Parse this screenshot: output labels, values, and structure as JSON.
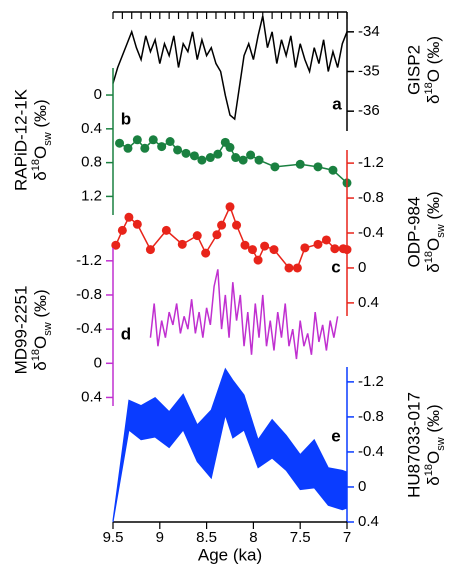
{
  "chart_data": [
    {
      "type": "line",
      "color": "#000000",
      "y_axis_side": "right",
      "x_axis_position": "top",
      "x_tick_labels": false,
      "y_label": "GISP2",
      "y_unit": [
        {
          "text": "δ"
        },
        {
          "text": "18",
          "style": "sup"
        },
        {
          "text": "O (‰)"
        }
      ],
      "panel_label": "a",
      "xlim": [
        9.5,
        7
      ],
      "xticks": [
        9.5,
        9.4,
        9.3,
        9.2,
        9.1,
        9,
        8.9,
        8.8,
        8.7,
        8.6,
        8.5,
        8.4,
        8.3,
        8.2,
        8.1,
        8,
        7.9,
        7.8,
        7.7,
        7.6,
        7.5,
        7.4,
        7.3,
        7.2,
        7.1,
        7
      ],
      "ylim": [
        -36.5,
        -33.5
      ],
      "yticks": [
        -34,
        -35,
        -36
      ],
      "x": [
        9.5,
        9.45,
        9.4,
        9.35,
        9.3,
        9.25,
        9.2,
        9.15,
        9.1,
        9.05,
        9.0,
        8.95,
        8.9,
        8.85,
        8.8,
        8.75,
        8.7,
        8.65,
        8.6,
        8.55,
        8.5,
        8.45,
        8.4,
        8.35,
        8.3,
        8.25,
        8.2,
        8.15,
        8.1,
        8.05,
        8.0,
        7.95,
        7.9,
        7.85,
        7.8,
        7.75,
        7.7,
        7.65,
        7.6,
        7.55,
        7.5,
        7.45,
        7.4,
        7.35,
        7.3,
        7.25,
        7.2,
        7.15,
        7.1,
        7.05,
        7.0
      ],
      "series": [
        {
          "values": [
            -35.3,
            -34.9,
            -34.6,
            -34.3,
            -34.0,
            -34.4,
            -34.7,
            -34.1,
            -34.5,
            -34.2,
            -34.8,
            -34.3,
            -34.6,
            -34.1,
            -34.9,
            -34.3,
            -34.5,
            -34.0,
            -34.7,
            -34.2,
            -34.6,
            -34.4,
            -34.8,
            -35.0,
            -35.6,
            -36.1,
            -36.2,
            -35.4,
            -34.6,
            -34.3,
            -34.7,
            -34.1,
            -33.6,
            -34.4,
            -34.0,
            -34.8,
            -34.2,
            -34.6,
            -34.1,
            -34.9,
            -34.3,
            -34.7,
            -35.0,
            -34.4,
            -34.8,
            -34.2,
            -35.0,
            -34.5,
            -34.9,
            -34.3,
            -34.0
          ]
        }
      ]
    },
    {
      "type": "line",
      "markers": true,
      "color": "#1a8040",
      "y_axis_side": "left",
      "y_label": "RAPiD-12-1K",
      "y_unit": [
        {
          "text": "δ"
        },
        {
          "text": "18",
          "style": "sup"
        },
        {
          "text": "O"
        },
        {
          "text": "sw",
          "style": "sub"
        },
        {
          "text": " (‰)"
        }
      ],
      "panel_label": "b",
      "xlim": [
        9.5,
        7
      ],
      "ylim": [
        1.42,
        -0.32
      ],
      "yticks": [
        0,
        0.4,
        0.8,
        1.2
      ],
      "x": [
        9.43,
        9.34,
        9.24,
        9.16,
        9.07,
        8.98,
        8.89,
        8.81,
        8.72,
        8.63,
        8.55,
        8.46,
        8.38,
        8.3,
        8.25,
        8.19,
        8.11,
        8.03,
        7.94,
        7.77,
        7.5,
        7.31,
        7.15,
        7.0
      ],
      "series": [
        {
          "values": [
            0.57,
            0.63,
            0.53,
            0.63,
            0.53,
            0.61,
            0.55,
            0.65,
            0.69,
            0.72,
            0.77,
            0.74,
            0.7,
            0.56,
            0.62,
            0.74,
            0.77,
            0.71,
            0.77,
            0.85,
            0.82,
            0.85,
            0.89,
            1.04
          ]
        }
      ]
    },
    {
      "type": "line",
      "markers": true,
      "color": "#e8241a",
      "y_axis_side": "right",
      "y_label": "ODP-984",
      "y_unit": [
        {
          "text": "δ"
        },
        {
          "text": "18",
          "style": "sup"
        },
        {
          "text": "O"
        },
        {
          "text": "sw",
          "style": "sub"
        },
        {
          "text": " (‰)"
        }
      ],
      "panel_label": "c",
      "xlim": [
        9.5,
        7
      ],
      "ylim": [
        0.55,
        -1.35
      ],
      "yticks": [
        -1.2,
        -0.8,
        -0.4,
        0,
        0.4
      ],
      "x": [
        9.47,
        9.4,
        9.33,
        9.24,
        9.1,
        8.93,
        8.76,
        8.6,
        8.51,
        8.39,
        8.34,
        8.25,
        8.18,
        8.09,
        8.01,
        7.95,
        7.88,
        7.78,
        7.62,
        7.53,
        7.45,
        7.31,
        7.22,
        7.13,
        7.04,
        7.0
      ],
      "series": [
        {
          "values": [
            -0.26,
            -0.43,
            -0.58,
            -0.5,
            -0.21,
            -0.43,
            -0.27,
            -0.37,
            -0.17,
            -0.38,
            -0.49,
            -0.7,
            -0.49,
            -0.26,
            -0.21,
            -0.09,
            -0.25,
            -0.21,
            0,
            0,
            -0.23,
            -0.27,
            -0.32,
            -0.22,
            -0.22,
            -0.21
          ]
        }
      ]
    },
    {
      "type": "line",
      "color": "#c030d0",
      "y_axis_side": "left",
      "y_label": "MD99-2251",
      "y_unit": [
        {
          "text": "δ"
        },
        {
          "text": "18",
          "style": "sup"
        },
        {
          "text": "O"
        },
        {
          "text": "sw",
          "style": "sub"
        },
        {
          "text": " (‰)"
        }
      ],
      "panel_label": "d",
      "xlim": [
        9.5,
        7
      ],
      "ylim": [
        0.5,
        -1.35
      ],
      "yticks": [
        -1.2,
        -0.8,
        -0.4,
        0,
        0.4
      ],
      "x": [
        9.1,
        9.06,
        9.02,
        8.98,
        8.94,
        8.9,
        8.86,
        8.82,
        8.78,
        8.74,
        8.7,
        8.66,
        8.62,
        8.58,
        8.54,
        8.5,
        8.46,
        8.42,
        8.38,
        8.34,
        8.3,
        8.26,
        8.22,
        8.18,
        8.14,
        8.1,
        8.06,
        8.02,
        7.98,
        7.94,
        7.9,
        7.86,
        7.82,
        7.78,
        7.74,
        7.7,
        7.66,
        7.62,
        7.58,
        7.54,
        7.5,
        7.46,
        7.42,
        7.38,
        7.34,
        7.3,
        7.26,
        7.22,
        7.18,
        7.14,
        7.1
      ],
      "series": [
        {
          "values": [
            -0.3,
            -0.7,
            -0.2,
            -0.5,
            -0.3,
            -0.6,
            -0.45,
            -0.7,
            -0.35,
            -0.55,
            -0.4,
            -0.75,
            -0.35,
            -0.6,
            -0.3,
            -0.65,
            -0.45,
            -0.9,
            -1.1,
            -0.4,
            -0.8,
            -0.3,
            -0.95,
            -0.5,
            -0.8,
            -0.2,
            -0.6,
            -0.1,
            -0.7,
            -0.3,
            -0.8,
            -0.2,
            -0.5,
            -0.15,
            -0.6,
            -0.3,
            -0.7,
            -0.2,
            -0.4,
            -0.05,
            -0.5,
            -0.2,
            -0.35,
            -0.1,
            -0.6,
            -0.25,
            -0.45,
            -0.15,
            -0.5,
            -0.3,
            -0.55
          ]
        }
      ]
    },
    {
      "type": "area",
      "color": "#0a3cff",
      "y_axis_side": "right",
      "x_axis_position": "bottom",
      "x_label": "Age (ka)",
      "y_label": "HU87033-017",
      "y_unit": [
        {
          "text": "δ"
        },
        {
          "text": "18",
          "style": "sup"
        },
        {
          "text": "O"
        },
        {
          "text": "sw",
          "style": "sub"
        },
        {
          "text": " (‰)"
        }
      ],
      "panel_label": "e",
      "xlim": [
        9.5,
        7
      ],
      "xticks": [
        9.5,
        9,
        8.5,
        8,
        7.5,
        7
      ],
      "ylim": [
        0.4,
        -1.37
      ],
      "yticks": [
        -1.2,
        -0.8,
        -0.4,
        0,
        0.4
      ],
      "x": [
        9.5,
        9.33,
        9.2,
        9.05,
        8.9,
        8.75,
        8.6,
        8.45,
        8.3,
        8.22,
        8.1,
        7.95,
        7.8,
        7.65,
        7.5,
        7.35,
        7.2,
        7.05,
        7.0
      ],
      "series": [
        {
          "values": [
            0.38,
            -0.99,
            -0.93,
            -1.02,
            -0.86,
            -1.06,
            -0.71,
            -0.88,
            -1.35,
            -1.22,
            -1.05,
            -0.54,
            -0.77,
            -0.59,
            -0.37,
            -0.54,
            -0.22,
            -0.19,
            -0.17
          ]
        },
        {
          "values": [
            0.4,
            -0.65,
            -0.54,
            -0.57,
            -0.45,
            -0.65,
            -0.29,
            -0.1,
            -0.82,
            -0.56,
            -0.65,
            -0.22,
            -0.33,
            -0.19,
            0.03,
            0.01,
            0.21,
            0.26,
            0.24
          ]
        }
      ]
    }
  ]
}
